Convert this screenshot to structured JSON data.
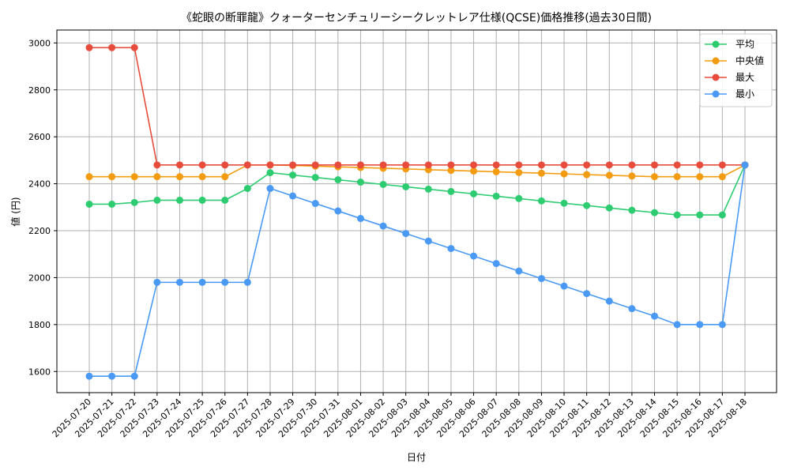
{
  "chart_data": {
    "type": "line",
    "title": "《蛇眼の断罪龍》クォーターセンチュリーシークレットレア仕様(QCSE)価格推移(過去30日間)",
    "xlabel": "日付",
    "ylabel": "値 (円)",
    "ylim": [
      1510,
      3055
    ],
    "yticks": [
      1600,
      1800,
      2000,
      2200,
      2400,
      2600,
      2800,
      3000
    ],
    "grid": true,
    "legend_position": "top-right",
    "categories": [
      "2025-07-20",
      "2025-07-21",
      "2025-07-22",
      "2025-07-23",
      "2025-07-24",
      "2025-07-25",
      "2025-07-26",
      "2025-07-27",
      "2025-07-28",
      "2025-07-29",
      "2025-07-30",
      "2025-07-31",
      "2025-08-01",
      "2025-08-02",
      "2025-08-03",
      "2025-08-04",
      "2025-08-05",
      "2025-08-06",
      "2025-08-07",
      "2025-08-08",
      "2025-08-09",
      "2025-08-10",
      "2025-08-11",
      "2025-08-12",
      "2025-08-13",
      "2025-08-14",
      "2025-08-15",
      "2025-08-16",
      "2025-08-17",
      "2025-08-18"
    ],
    "series": [
      {
        "name": "平均",
        "color": "#2ecc71",
        "values": [
          2313,
          2313,
          2320,
          2330,
          2330,
          2330,
          2330,
          2380,
          2447,
          2437,
          2427,
          2417,
          2407,
          2397,
          2387,
          2377,
          2367,
          2357,
          2347,
          2337,
          2327,
          2317,
          2307,
          2297,
          2287,
          2277,
          2267,
          2267,
          2267,
          2480
        ]
      },
      {
        "name": "中央値",
        "color": "#f39c12",
        "values": [
          2430,
          2430,
          2430,
          2430,
          2430,
          2430,
          2430,
          2480,
          2480,
          2478,
          2475,
          2472,
          2469,
          2466,
          2463,
          2460,
          2457,
          2454,
          2451,
          2448,
          2445,
          2442,
          2439,
          2436,
          2433,
          2430,
          2430,
          2430,
          2430,
          2480
        ]
      },
      {
        "name": "最大",
        "color": "#e74c3c",
        "values": [
          2980,
          2980,
          2980,
          2480,
          2480,
          2480,
          2480,
          2480,
          2480,
          2480,
          2480,
          2480,
          2480,
          2480,
          2480,
          2480,
          2480,
          2480,
          2480,
          2480,
          2480,
          2480,
          2480,
          2480,
          2480,
          2480,
          2480,
          2480,
          2480,
          2480
        ]
      },
      {
        "name": "最小",
        "color": "#4a9af5",
        "values": [
          1580,
          1580,
          1580,
          1980,
          1980,
          1980,
          1980,
          1980,
          2380,
          2348,
          2316,
          2284,
          2252,
          2220,
          2188,
          2156,
          2124,
          2092,
          2060,
          2028,
          1996,
          1964,
          1932,
          1900,
          1868,
          1836,
          1800,
          1800,
          1800,
          2480
        ]
      }
    ]
  }
}
